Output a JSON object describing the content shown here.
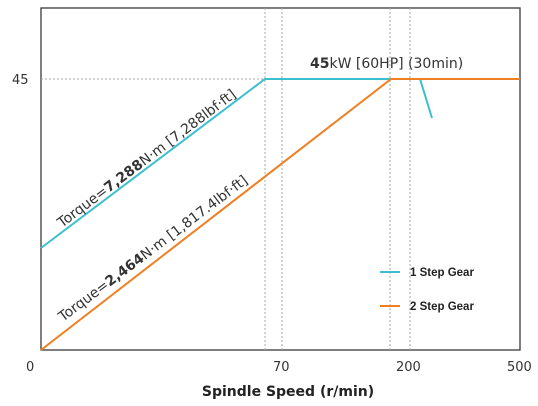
{
  "chart_data": {
    "type": "line",
    "title": "",
    "xlabel": "Spindle Speed (r/min)",
    "ylabel": "",
    "x_ticks": [
      "0",
      "70",
      "200",
      "500"
    ],
    "y_ticks": [
      "45"
    ],
    "x_scale": "nonlinear (piecewise)",
    "grid": "dotted reference lines at breakpoints",
    "legend_position": "bottom-right",
    "series": [
      {
        "name": "1 Step Gear",
        "color": "#3bbfcf",
        "points": [
          {
            "x": 0,
            "y": 22
          },
          {
            "x": 59,
            "y": 45
          },
          {
            "x": 230,
            "y": 45
          },
          {
            "x": 240,
            "y": 38
          }
        ]
      },
      {
        "name": "2 Step Gear",
        "color": "#f07f22",
        "points": [
          {
            "x": 0,
            "y": 0
          },
          {
            "x": 174,
            "y": 45
          },
          {
            "x": 500,
            "y": 45
          }
        ]
      }
    ],
    "annotations": {
      "power": {
        "value": "45",
        "rest": "kW [60HP] (30min)"
      },
      "torque_1": {
        "prefix": "Torque=",
        "value": "7,288",
        "rest": "N·m [7,288lbf·ft]"
      },
      "torque_2": {
        "prefix": "Torque=",
        "value": "2,464",
        "rest": "N·m [1,817.4lbf·ft]"
      }
    }
  }
}
